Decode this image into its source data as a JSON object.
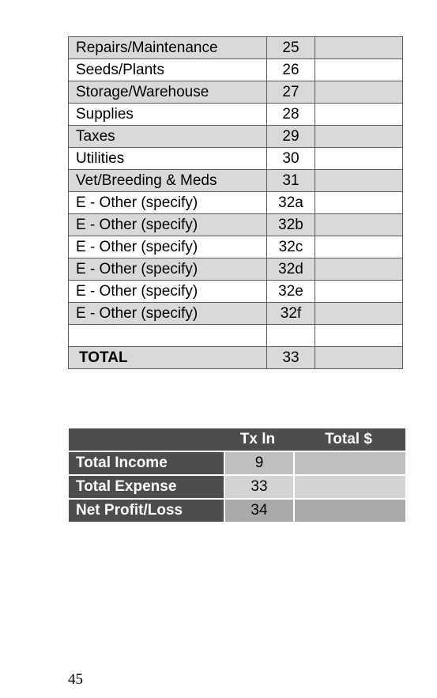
{
  "expense_table": {
    "rows": [
      {
        "label": "Repairs/Maintenance",
        "line": "25",
        "value": ""
      },
      {
        "label": "Seeds/Plants",
        "line": "26",
        "value": ""
      },
      {
        "label": "Storage/Warehouse",
        "line": "27",
        "value": ""
      },
      {
        "label": "Supplies",
        "line": "28",
        "value": ""
      },
      {
        "label": "Taxes",
        "line": "29",
        "value": ""
      },
      {
        "label": "Utilities",
        "line": "30",
        "value": ""
      },
      {
        "label": "Vet/Breeding & Meds",
        "line": "31",
        "value": ""
      },
      {
        "label": "E - Other (specify)",
        "line": "32a",
        "value": ""
      },
      {
        "label": "E - Other (specify)",
        "line": "32b",
        "value": ""
      },
      {
        "label": "E - Other (specify)",
        "line": "32c",
        "value": ""
      },
      {
        "label": "E - Other (specify)",
        "line": "32d",
        "value": ""
      },
      {
        "label": "E - Other (specify)",
        "line": "32e",
        "value": ""
      },
      {
        "label": "E - Other (specify)",
        "line": "32f",
        "value": ""
      },
      {
        "label": "",
        "line": "",
        "value": ""
      },
      {
        "label": "TOTAL",
        "line": "33",
        "value": ""
      }
    ]
  },
  "summary": {
    "header": {
      "label": "",
      "line": "Tx ln",
      "value": "Total $"
    },
    "rows": [
      {
        "label": "Total Income",
        "line": "9",
        "value": ""
      },
      {
        "label": "Total Expense",
        "line": "33",
        "value": ""
      },
      {
        "label": "Net Profit/Loss",
        "line": "34",
        "value": ""
      }
    ]
  },
  "page_number": "45"
}
